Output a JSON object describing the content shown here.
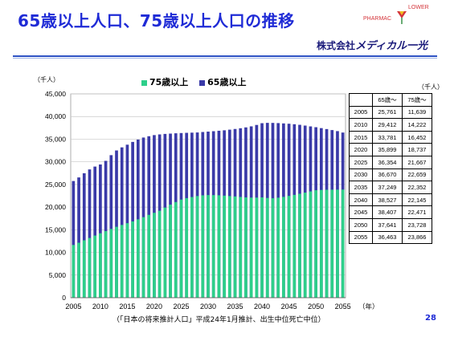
{
  "slide": {
    "title": "65歳以上人口、75歳以上人口の推移",
    "brand_top": "PHARMAC",
    "brand_lower": "LOWER",
    "company_prefix": "株式会社",
    "company_name": "メディカル一光",
    "page_number": "28",
    "source_note": "（「日本の将来推計人口」平成24年1月推計、出生中位死亡中位）",
    "colors": {
      "title": "#1f2bd6",
      "series_75": "#2ecf8a",
      "series_65": "#3a3aa8",
      "rule": "#2d52c4"
    }
  },
  "table": {
    "unit": "（千人）",
    "headers": [
      "",
      "65歳～",
      "75歳～"
    ],
    "rows": [
      [
        "2005",
        "25,761",
        "11,639"
      ],
      [
        "2010",
        "29,412",
        "14,222"
      ],
      [
        "2015",
        "33,781",
        "16,452"
      ],
      [
        "2020",
        "35,899",
        "18,737"
      ],
      [
        "2025",
        "36,354",
        "21,667"
      ],
      [
        "2030",
        "36,670",
        "22,659"
      ],
      [
        "2035",
        "37,249",
        "22,352"
      ],
      [
        "2040",
        "38,527",
        "22,145"
      ],
      [
        "2045",
        "38,407",
        "22,471"
      ],
      [
        "2050",
        "37,641",
        "23,728"
      ],
      [
        "2055",
        "36,463",
        "23,866"
      ]
    ]
  },
  "chart_data": {
    "type": "bar",
    "stacked": false,
    "overlaid": true,
    "unit_label": "（千人）",
    "xlabel_suffix": "（年）",
    "ylim": [
      0,
      45000
    ],
    "yticks": [
      "0",
      "5,000",
      "10,000",
      "15,000",
      "20,000",
      "25,000",
      "30,000",
      "35,000",
      "40,000",
      "45,000"
    ],
    "xtick_labels": [
      "2005",
      "2010",
      "2015",
      "2020",
      "2025",
      "2030",
      "2035",
      "2040",
      "2045",
      "2050",
      "2055"
    ],
    "grid": true,
    "legend_position": "top",
    "x": [
      2005,
      2006,
      2007,
      2008,
      2009,
      2010,
      2011,
      2012,
      2013,
      2014,
      2015,
      2016,
      2017,
      2018,
      2019,
      2020,
      2021,
      2022,
      2023,
      2024,
      2025,
      2026,
      2027,
      2028,
      2029,
      2030,
      2031,
      2032,
      2033,
      2034,
      2035,
      2036,
      2037,
      2038,
      2039,
      2040,
      2041,
      2042,
      2043,
      2044,
      2045,
      2046,
      2047,
      2048,
      2049,
      2050,
      2051,
      2052,
      2053,
      2054,
      2055
    ],
    "series": [
      {
        "name": "75歳以上",
        "color": "#2ecf8a",
        "values": [
          11639,
          12130,
          12670,
          13180,
          13720,
          14222,
          14700,
          15180,
          15650,
          16060,
          16452,
          16850,
          17300,
          17780,
          18290,
          18737,
          19200,
          19900,
          20550,
          21120,
          21667,
          21980,
          22220,
          22440,
          22600,
          22659,
          22650,
          22610,
          22530,
          22440,
          22352,
          22240,
          22150,
          22100,
          22100,
          22145,
          22020,
          21950,
          22080,
          22260,
          22471,
          22700,
          22950,
          23200,
          23470,
          23728,
          23790,
          23830,
          23850,
          23860,
          23866
        ]
      },
      {
        "name": "65歳以上",
        "color": "#3a3aa8",
        "values": [
          25761,
          26550,
          27480,
          28320,
          28950,
          29412,
          30210,
          31470,
          32510,
          33190,
          33781,
          34390,
          34910,
          35360,
          35650,
          35899,
          36050,
          36160,
          36230,
          36300,
          36354,
          36400,
          36440,
          36480,
          36580,
          36670,
          36760,
          36860,
          36960,
          37100,
          37249,
          37410,
          37600,
          37830,
          38140,
          38527,
          38600,
          38590,
          38550,
          38480,
          38407,
          38300,
          38170,
          38000,
          37820,
          37641,
          37440,
          37230,
          37010,
          36780,
          36463
        ]
      }
    ]
  }
}
